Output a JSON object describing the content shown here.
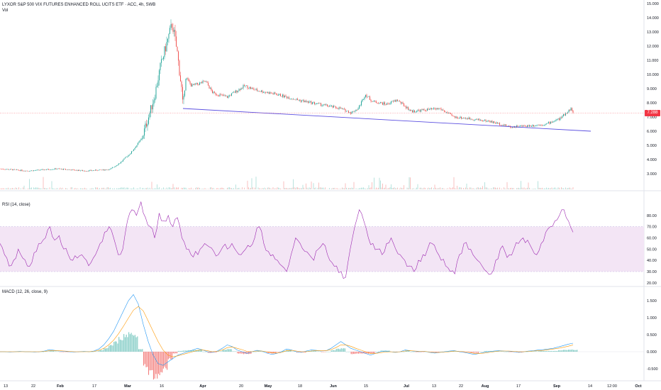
{
  "header": {
    "title": "LYXOR S&P 500 VIX FUTURES ENHANCED ROLL UCITS ETF · ACC, 4h, SWB",
    "vol_label": "Vol",
    "current_price": "7.288"
  },
  "colors": {
    "up": "#26a69a",
    "down": "#ef5350",
    "trendline": "#5b4fe0",
    "rsi_line": "#9c27b0",
    "rsi_band": "#f3e5f5",
    "macd_line": "#2196f3",
    "signal_line": "#ff9800",
    "price_badge": "#f23645",
    "price_line": "#f23645"
  },
  "panes": {
    "rsi": {
      "legend": "RSI (14, close)"
    },
    "macd": {
      "legend": "MACD (12, 26, close, 9)"
    }
  },
  "chart_data": [
    {
      "type": "candlestick",
      "pane": "price",
      "ylim": [
        2.5,
        15
      ],
      "ticks": [
        "3.000",
        "4.000",
        "5.000",
        "6.000",
        "7.000",
        "8.000",
        "9.000",
        "10.000",
        "11.000",
        "12.000",
        "13.000",
        "14.000",
        "15.000"
      ],
      "last_value": 7.288,
      "path": [
        [
          0,
          3.35
        ],
        [
          40,
          3.2
        ],
        [
          80,
          3.35
        ],
        [
          120,
          3.2
        ],
        [
          155,
          3.3
        ],
        [
          170,
          3.8
        ],
        [
          185,
          4.5
        ],
        [
          200,
          5.5
        ],
        [
          210,
          7.1
        ],
        [
          218,
          8.5
        ],
        [
          226,
          10.5
        ],
        [
          234,
          12
        ],
        [
          243,
          13.6
        ],
        [
          250,
          11.5
        ],
        [
          256,
          9
        ],
        [
          258,
          7.6
        ],
        [
          262,
          9.8
        ],
        [
          270,
          9.2
        ],
        [
          290,
          9.5
        ],
        [
          300,
          8.7
        ],
        [
          320,
          8.4
        ],
        [
          345,
          9.2
        ],
        [
          360,
          8.9
        ],
        [
          390,
          8.6
        ],
        [
          420,
          8.2
        ],
        [
          450,
          7.9
        ],
        [
          480,
          7.6
        ],
        [
          495,
          7.3
        ],
        [
          505,
          7.6
        ],
        [
          515,
          8.6
        ],
        [
          525,
          8.1
        ],
        [
          545,
          7.9
        ],
        [
          560,
          8.2
        ],
        [
          580,
          7.4
        ],
        [
          600,
          7.5
        ],
        [
          620,
          7.6
        ],
        [
          640,
          7
        ],
        [
          660,
          6.9
        ],
        [
          690,
          6.7
        ],
        [
          720,
          6.3
        ],
        [
          750,
          6.4
        ],
        [
          770,
          6.5
        ],
        [
          790,
          6.9
        ],
        [
          805,
          7.6
        ],
        [
          808,
          7.3
        ]
      ],
      "trendline": {
        "from": [
          258,
          7.6
        ],
        "to": [
          833,
          6.0
        ]
      }
    },
    {
      "type": "line",
      "pane": "rsi",
      "ylim": [
        18,
        95
      ],
      "ticks": [
        "20.00",
        "30.00",
        "40.00",
        "50.00",
        "60.00",
        "70.00",
        "80.00"
      ],
      "band": [
        30,
        70
      ],
      "values": [
        55,
        45,
        35,
        40,
        50,
        42,
        35,
        38,
        48,
        55,
        60,
        70,
        58,
        62,
        50,
        45,
        40,
        42,
        45,
        40,
        38,
        45,
        55,
        65,
        70,
        60,
        45,
        50,
        75,
        85,
        80,
        92,
        78,
        70,
        60,
        82,
        75,
        80,
        70,
        78,
        60,
        50,
        45,
        48,
        50,
        55,
        52,
        48,
        45,
        52,
        50,
        55,
        48,
        45,
        50,
        52,
        60,
        70,
        55,
        48,
        45,
        40,
        35,
        30,
        45,
        60,
        55,
        48,
        45,
        40,
        50,
        55,
        45,
        38,
        35,
        30,
        25,
        50,
        70,
        85,
        75,
        60,
        55,
        50,
        45,
        55,
        60,
        50,
        45,
        40,
        35,
        30,
        40,
        45,
        50,
        55,
        48,
        40,
        35,
        30,
        28,
        45,
        55,
        50,
        45,
        40,
        35,
        30,
        28,
        40,
        50,
        48,
        45,
        50,
        55,
        60,
        58,
        50,
        45,
        55,
        65,
        70,
        75,
        80,
        85,
        75,
        65
      ]
    },
    {
      "type": "macd",
      "pane": "macd",
      "ylim": [
        -0.75,
        1.75
      ],
      "ticks": [
        "-0.500",
        "0.000",
        "0.500",
        "1.000",
        "1.500"
      ],
      "macd": [
        0,
        0,
        -0.01,
        0,
        0.01,
        0,
        0,
        -0.01,
        0,
        0.02,
        0.06,
        0.04,
        0.02,
        0.01,
        0,
        -0.01,
        0,
        0.01,
        0,
        0.02,
        0.08,
        0.2,
        0.38,
        0.6,
        0.9,
        1.2,
        1.5,
        1.68,
        1.4,
        0.8,
        0.3,
        -0.1,
        -0.35,
        -0.4,
        -0.3,
        -0.2,
        -0.1,
        -0.05,
        0,
        0.05,
        0.1,
        0.05,
        0,
        -0.02,
        0.02,
        0.1,
        0.2,
        0.15,
        0.05,
        0,
        -0.05,
        0,
        0.04,
        0.02,
        -0.04,
        -0.08,
        -0.05,
        0,
        0.08,
        0.05,
        0,
        -0.02,
        0.02,
        0.05,
        0.04,
        0.02,
        0.03,
        0.1,
        0.2,
        0.3,
        0.2,
        0.1,
        0.05,
        0,
        -0.05,
        -0.1,
        -0.05,
        0,
        0.02,
        0,
        -0.02,
        0,
        0.05,
        0.03,
        0.01,
        0,
        0.01,
        -0.02,
        -0.04,
        -0.02,
        0,
        0.02,
        0.03,
        0,
        -0.02,
        -0.05,
        -0.08,
        -0.05,
        -0.02,
        0,
        0.02,
        0.03,
        0.02,
        0.01,
        0,
        -0.02,
        0,
        0.02,
        0.03,
        0.05,
        0.06,
        0.08,
        0.1,
        0.14,
        0.18,
        0.22,
        0.25
      ],
      "signal": [
        0,
        0,
        0,
        0,
        0,
        0,
        0,
        0,
        0,
        0.01,
        0.03,
        0.03,
        0.03,
        0.02,
        0.01,
        0,
        0,
        0,
        0,
        0.01,
        0.04,
        0.1,
        0.2,
        0.34,
        0.53,
        0.75,
        0.99,
        1.22,
        1.33,
        1.2,
        0.9,
        0.6,
        0.3,
        0.05,
        -0.1,
        -0.15,
        -0.12,
        -0.08,
        -0.04,
        0,
        0.04,
        0.05,
        0.03,
        0,
        0.01,
        0.05,
        0.12,
        0.14,
        0.1,
        0.06,
        0.01,
        0,
        0.02,
        0.02,
        0,
        -0.03,
        -0.04,
        -0.02,
        0.03,
        0.04,
        0.02,
        0,
        0,
        0.02,
        0.03,
        0.03,
        0.03,
        0.06,
        0.12,
        0.2,
        0.2,
        0.16,
        0.1,
        0.05,
        0,
        -0.05,
        -0.05,
        -0.03,
        -0.01,
        0,
        -0.01,
        0,
        0.02,
        0.03,
        0.02,
        0.01,
        0.01,
        -0.01,
        -0.02,
        -0.02,
        -0.01,
        0,
        0.02,
        0.01,
        0,
        -0.02,
        -0.05,
        -0.05,
        -0.04,
        -0.02,
        0,
        0.02,
        0.02,
        0.02,
        0.01,
        0,
        0,
        0.01,
        0.02,
        0.03,
        0.04,
        0.06,
        0.08,
        0.1,
        0.13,
        0.16,
        0.2
      ]
    }
  ],
  "x_axis": {
    "labels": [
      "13",
      "22",
      "Feb",
      "17",
      "Mar",
      "16",
      "Apr",
      "20",
      "May",
      "18",
      "Jun",
      "15",
      "Jul",
      "13",
      "22",
      "Aug",
      "17",
      "Sep",
      "14",
      "12:00",
      "Oct"
    ]
  }
}
